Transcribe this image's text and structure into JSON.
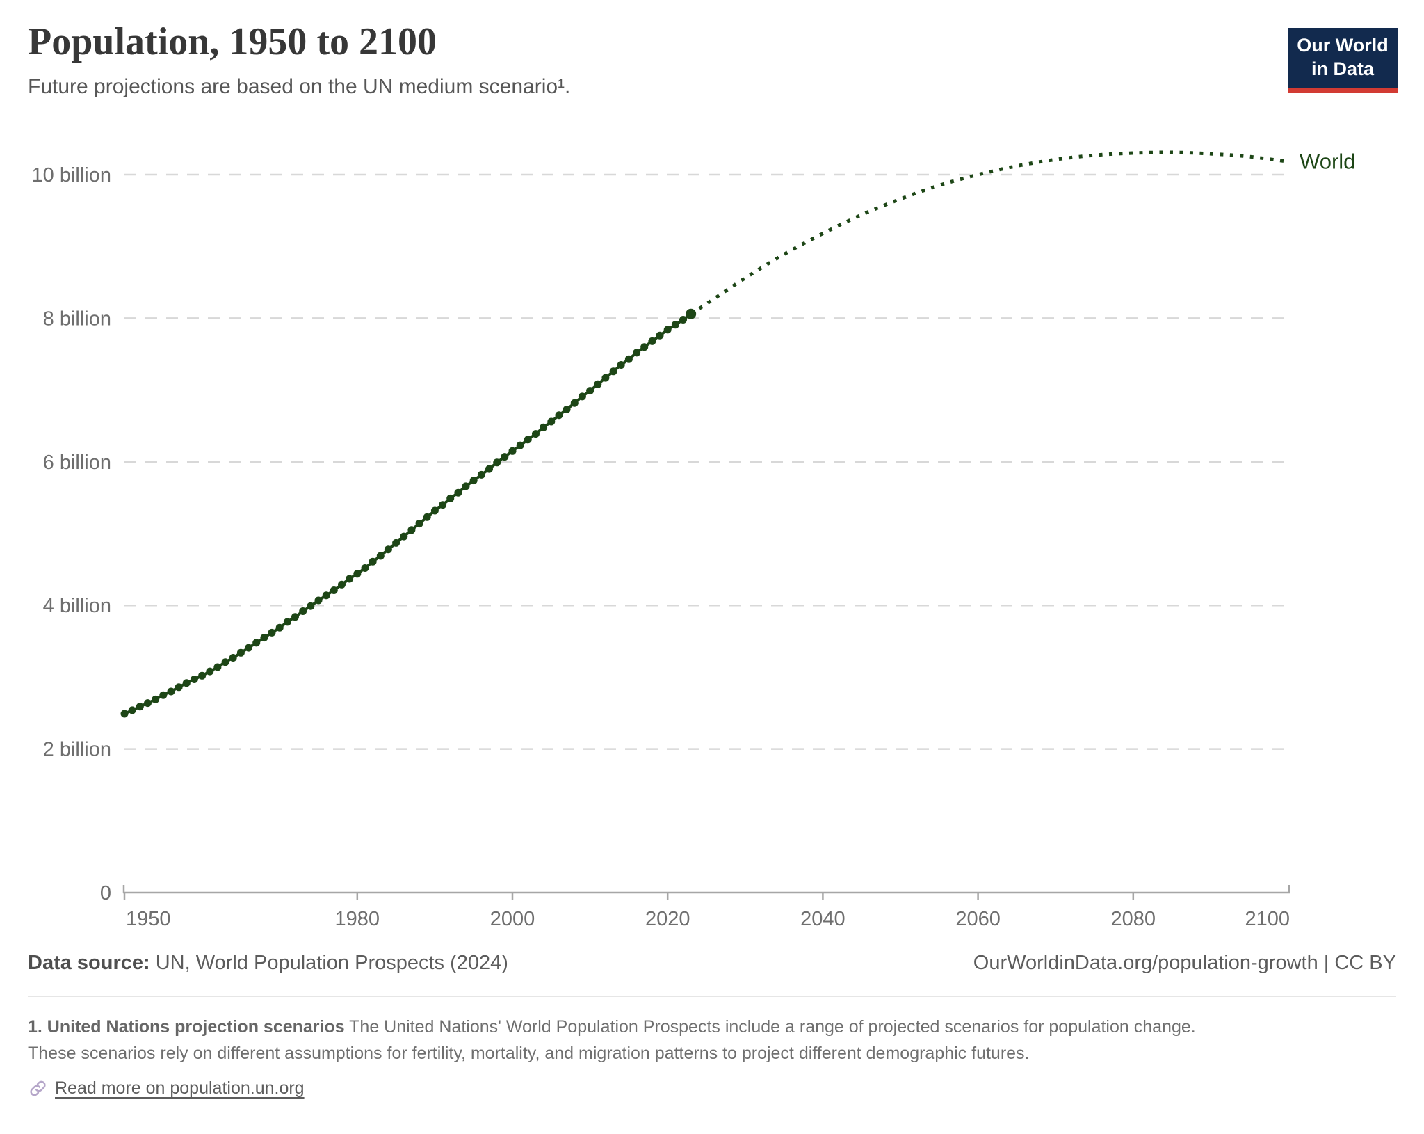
{
  "header": {
    "title": "Population, 1950 to 2100",
    "subtitle": "Future projections are based on the UN medium scenario¹.",
    "logo_line1": "Our World",
    "logo_line2": "in Data"
  },
  "colors": {
    "series_green": "#1D4616",
    "gridline": "#D8D8D8",
    "axis": "#A6A6A6",
    "tick_text": "#6E6E6E",
    "logo_navy": "#122A4E",
    "logo_red": "#D23B33"
  },
  "chart_data": {
    "type": "line",
    "title": "Population, 1950 to 2100",
    "subtitle": "Future projections are based on the UN medium scenario.",
    "xlabel": "",
    "ylabel": "",
    "x_range": [
      1950,
      2100
    ],
    "y_range": [
      0,
      10.5
    ],
    "x_ticks": [
      1950,
      1980,
      2000,
      2020,
      2040,
      2060,
      2080,
      2100
    ],
    "y_ticks": [
      {
        "value": 0,
        "label": "0"
      },
      {
        "value": 2,
        "label": "2 billion"
      },
      {
        "value": 4,
        "label": "4 billion"
      },
      {
        "value": 6,
        "label": "6 billion"
      },
      {
        "value": 8,
        "label": "8 billion"
      },
      {
        "value": 10,
        "label": "10 billion"
      }
    ],
    "grid": "horizontal-dashed",
    "legend": "end-of-line label",
    "end_label": "World",
    "units": "billions of people",
    "series": [
      {
        "name": "World (historical estimates)",
        "style": "solid line with yearly dot markers",
        "color": "#1D4616",
        "points": [
          [
            1950,
            2.49
          ],
          [
            1951,
            2.54
          ],
          [
            1952,
            2.59
          ],
          [
            1953,
            2.64
          ],
          [
            1954,
            2.69
          ],
          [
            1955,
            2.75
          ],
          [
            1956,
            2.8
          ],
          [
            1957,
            2.86
          ],
          [
            1958,
            2.92
          ],
          [
            1959,
            2.97
          ],
          [
            1960,
            3.02
          ],
          [
            1961,
            3.08
          ],
          [
            1962,
            3.14
          ],
          [
            1963,
            3.21
          ],
          [
            1964,
            3.27
          ],
          [
            1965,
            3.34
          ],
          [
            1966,
            3.41
          ],
          [
            1967,
            3.48
          ],
          [
            1968,
            3.55
          ],
          [
            1969,
            3.62
          ],
          [
            1970,
            3.69
          ],
          [
            1971,
            3.77
          ],
          [
            1972,
            3.84
          ],
          [
            1973,
            3.92
          ],
          [
            1974,
            3.99
          ],
          [
            1975,
            4.07
          ],
          [
            1976,
            4.14
          ],
          [
            1977,
            4.21
          ],
          [
            1978,
            4.29
          ],
          [
            1979,
            4.37
          ],
          [
            1980,
            4.44
          ],
          [
            1981,
            4.52
          ],
          [
            1982,
            4.61
          ],
          [
            1983,
            4.69
          ],
          [
            1984,
            4.78
          ],
          [
            1985,
            4.87
          ],
          [
            1986,
            4.96
          ],
          [
            1987,
            5.05
          ],
          [
            1988,
            5.14
          ],
          [
            1989,
            5.23
          ],
          [
            1990,
            5.32
          ],
          [
            1991,
            5.4
          ],
          [
            1992,
            5.49
          ],
          [
            1993,
            5.57
          ],
          [
            1994,
            5.66
          ],
          [
            1995,
            5.74
          ],
          [
            1996,
            5.82
          ],
          [
            1997,
            5.9
          ],
          [
            1998,
            5.99
          ],
          [
            1999,
            6.07
          ],
          [
            2000,
            6.15
          ],
          [
            2001,
            6.23
          ],
          [
            2002,
            6.31
          ],
          [
            2003,
            6.39
          ],
          [
            2004,
            6.48
          ],
          [
            2005,
            6.56
          ],
          [
            2006,
            6.65
          ],
          [
            2007,
            6.73
          ],
          [
            2008,
            6.82
          ],
          [
            2009,
            6.91
          ],
          [
            2010,
            6.99
          ],
          [
            2011,
            7.08
          ],
          [
            2012,
            7.17
          ],
          [
            2013,
            7.26
          ],
          [
            2014,
            7.35
          ],
          [
            2015,
            7.43
          ],
          [
            2016,
            7.52
          ],
          [
            2017,
            7.6
          ],
          [
            2018,
            7.68
          ],
          [
            2019,
            7.76
          ],
          [
            2020,
            7.84
          ],
          [
            2021,
            7.91
          ],
          [
            2022,
            7.98
          ],
          [
            2023,
            8.06
          ]
        ]
      },
      {
        "name": "World (UN medium scenario projection)",
        "style": "dotted line",
        "color": "#1D4616",
        "points": [
          [
            2023,
            8.06
          ],
          [
            2024,
            8.13
          ],
          [
            2025,
            8.2
          ],
          [
            2030,
            8.56
          ],
          [
            2035,
            8.89
          ],
          [
            2040,
            9.18
          ],
          [
            2045,
            9.44
          ],
          [
            2050,
            9.66
          ],
          [
            2055,
            9.85
          ],
          [
            2060,
            10.0
          ],
          [
            2065,
            10.12
          ],
          [
            2070,
            10.21
          ],
          [
            2075,
            10.27
          ],
          [
            2080,
            10.3
          ],
          [
            2085,
            10.31
          ],
          [
            2090,
            10.29
          ],
          [
            2095,
            10.25
          ],
          [
            2100,
            10.18
          ]
        ]
      }
    ]
  },
  "footer": {
    "source_label": "Data source:",
    "source_text": " UN, World Population Prospects (2024)",
    "attribution": "OurWorldinData.org/population-growth | CC BY"
  },
  "footnote": {
    "lead": "1. United Nations projection scenarios",
    "line1": " The United Nations' World Population Prospects include a range of projected scenarios for population change.",
    "line2": "These scenarios rely on different assumptions for fertility, mortality, and migration patterns to project different demographic futures.",
    "link_text": "Read more on population.un.org"
  }
}
